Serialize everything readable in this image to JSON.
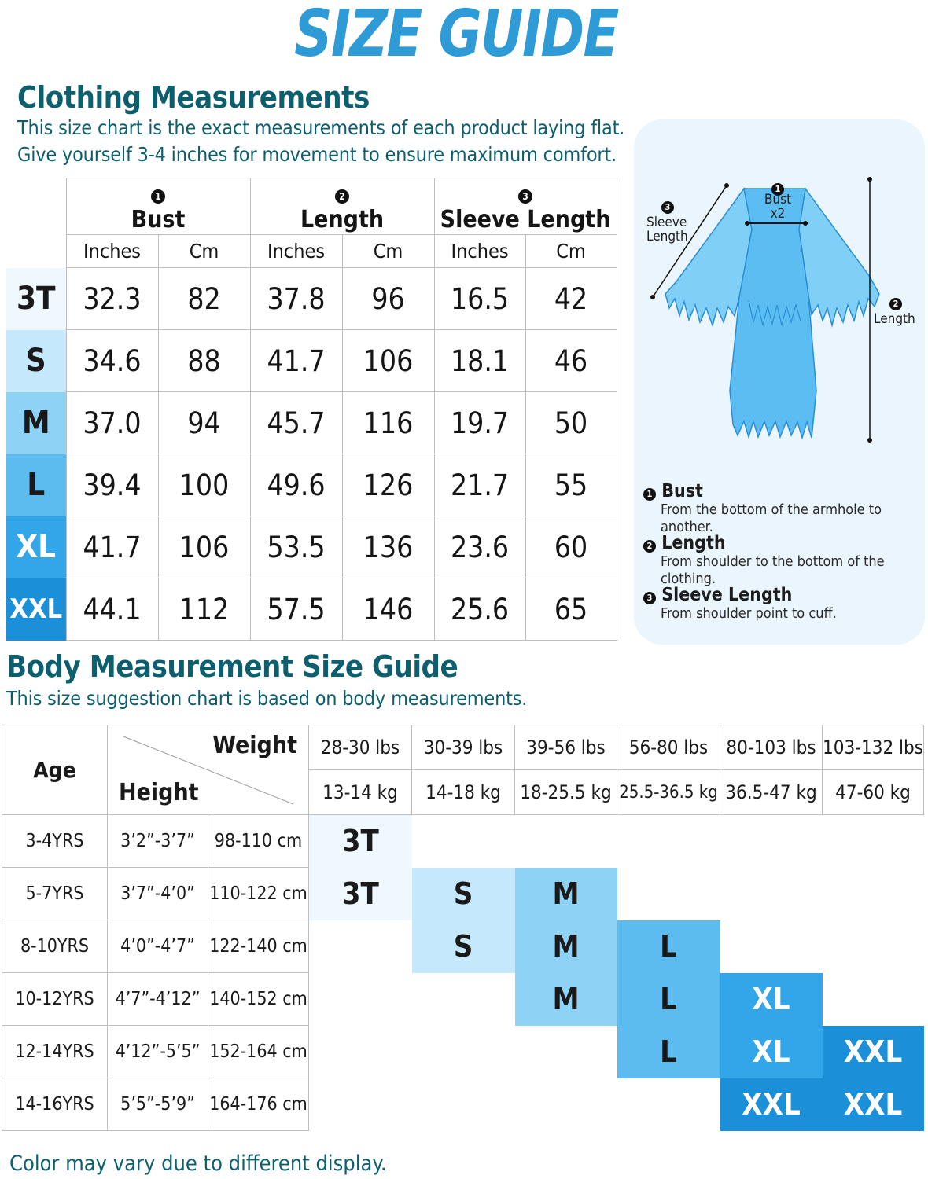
{
  "title": "SIZE GUIDE",
  "clothing": {
    "heading": "Clothing Measurements",
    "desc_line1": "This size chart is the exact measurements of each product laying flat.",
    "desc_line2": "Give yourself 3-4 inches for movement to ensure maximum comfort.",
    "groups": [
      {
        "num": "1",
        "label": "Bust"
      },
      {
        "num": "2",
        "label": "Length"
      },
      {
        "num": "3",
        "label": "Sleeve Length"
      }
    ],
    "units": [
      "Inches",
      "Cm",
      "Inches",
      "Cm",
      "Inches",
      "Cm"
    ],
    "rows": [
      {
        "size": "3T",
        "values": [
          "32.3",
          "82",
          "37.8",
          "96",
          "16.5",
          "42"
        ],
        "color": "#eff8fe",
        "text": "#1a1a1a"
      },
      {
        "size": "S",
        "values": [
          "34.6",
          "88",
          "41.7",
          "106",
          "18.1",
          "46"
        ],
        "color": "#c5e8fc",
        "text": "#1a1a1a"
      },
      {
        "size": "M",
        "values": [
          "37.0",
          "94",
          "45.7",
          "116",
          "19.7",
          "50"
        ],
        "color": "#8ed2f6",
        "text": "#1a1a1a"
      },
      {
        "size": "L",
        "values": [
          "39.4",
          "100",
          "49.6",
          "126",
          "21.7",
          "55"
        ],
        "color": "#5cbcf0",
        "text": "#1a1a1a"
      },
      {
        "size": "XL",
        "values": [
          "41.7",
          "106",
          "53.5",
          "136",
          "23.6",
          "60"
        ],
        "color": "#32a6e8",
        "text": "#ffffff"
      },
      {
        "size": "XXL",
        "values": [
          "44.1",
          "112",
          "57.5",
          "146",
          "25.6",
          "65"
        ],
        "color": "#1b8fd8",
        "text": "#ffffff"
      }
    ]
  },
  "diagram": {
    "bust_num": "1",
    "bust": "Bust",
    "bust_x2": "x2",
    "sleeve_num": "3",
    "sleeve_line1": "Sleeve",
    "sleeve_line2": "Length",
    "length_num": "2",
    "length": "Length",
    "legend": [
      {
        "num": "1",
        "title": "Bust",
        "desc": "From the bottom of the armhole to another."
      },
      {
        "num": "2",
        "title": "Length",
        "desc": "From shoulder to the bottom of the clothing."
      },
      {
        "num": "3",
        "title": "Sleeve Length",
        "desc": "From shoulder point to cuff."
      }
    ]
  },
  "body": {
    "heading": "Body Measurement Size Guide",
    "desc": "This size suggestion chart is based on body measurements.",
    "age_label": "Age",
    "weight_label": "Weight",
    "height_label": "Height",
    "weights_lbs": [
      "28-30 lbs",
      "30-39 lbs",
      "39-56 lbs",
      "56-80 lbs",
      "80-103 lbs",
      "103-132 lbs"
    ],
    "weights_kg": [
      "13-14 kg",
      "14-18 kg",
      "18-25.5 kg",
      "25.5-36.5 kg",
      "36.5-47 kg",
      "47-60 kg"
    ],
    "rows": [
      {
        "age": "3-4YRS",
        "height_in": "3’2”-3’7”",
        "height_cm": "98-110 cm",
        "sizes": [
          "3T",
          "",
          "",
          "",
          "",
          ""
        ]
      },
      {
        "age": "5-7YRS",
        "height_in": "3’7”-4’0”",
        "height_cm": "110-122 cm",
        "sizes": [
          "3T",
          "S",
          "M",
          "",
          "",
          ""
        ]
      },
      {
        "age": "8-10YRS",
        "height_in": "4’0”-4’7”",
        "height_cm": "122-140 cm",
        "sizes": [
          "",
          "S",
          "M",
          "L",
          "",
          ""
        ]
      },
      {
        "age": "10-12YRS",
        "height_in": "4’7”-4’12”",
        "height_cm": "140-152 cm",
        "sizes": [
          "",
          "",
          "M",
          "L",
          "XL",
          ""
        ]
      },
      {
        "age": "12-14YRS",
        "height_in": "4’12”-5’5”",
        "height_cm": "152-164 cm",
        "sizes": [
          "",
          "",
          "",
          "L",
          "XL",
          "XXL"
        ]
      },
      {
        "age": "14-16YRS",
        "height_in": "5’5”-5’9”",
        "height_cm": "164-176 cm",
        "sizes": [
          "",
          "",
          "",
          "",
          "XXL",
          "XXL"
        ]
      }
    ],
    "size_colors": {
      "3T": "#eff8fe",
      "S": "#c5e8fc",
      "M": "#8ed2f6",
      "L": "#5cbcf0",
      "XL": "#32a6e8",
      "XXL": "#1b8fd8"
    },
    "size_text_colors": {
      "3T": "#1a1a1a",
      "S": "#1a1a1a",
      "M": "#1a1a1a",
      "L": "#1a1a1a",
      "XL": "#ffffff",
      "XXL": "#ffffff"
    }
  },
  "note": "Color may vary due to different display."
}
